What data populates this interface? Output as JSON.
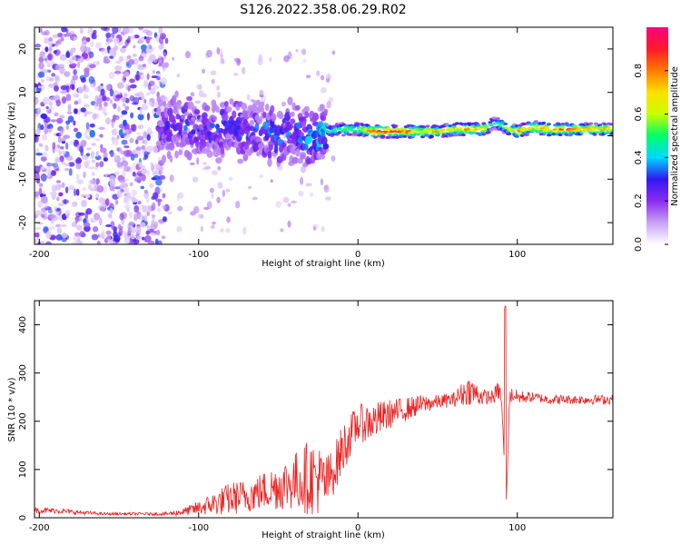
{
  "title": "S126.2022.358.06.29.R02",
  "colors": {
    "snr_line": "#ee2222",
    "axis": "#000000",
    "background": "#ffffff"
  },
  "chart_data": [
    {
      "type": "heatmap",
      "id": "spectrogram",
      "xlabel": "Height of straight line (km)",
      "ylabel": "Frequency (Hz)",
      "xlim": [
        -203,
        160
      ],
      "ylim": [
        -25,
        25
      ],
      "xticks": [
        -200,
        -100,
        0,
        100
      ],
      "yticks": [
        -20,
        -10,
        0,
        10,
        20
      ],
      "grid": false,
      "colorbar": {
        "label": "Normalized spectral amplitude",
        "range": [
          0,
          1
        ],
        "ticks": [
          0.0,
          0.2,
          0.4,
          0.6,
          0.8
        ],
        "palette": [
          "#ffffff",
          "#c7a2f5",
          "#8b2cf0",
          "#3018f0",
          "#00d8ff",
          "#00ff66",
          "#c8ff00",
          "#ffe000",
          "#ff7a00",
          "#ff1a2a",
          "#ff0080"
        ]
      },
      "carrier_track": {
        "description_points_km": [
          -120,
          -110,
          -100,
          -90,
          -80,
          -70,
          -60,
          -50,
          -40,
          -30,
          -20,
          -10,
          0,
          10,
          20,
          30,
          40,
          50,
          60,
          70,
          80,
          85,
          90,
          95,
          100,
          105,
          110,
          120,
          130,
          140,
          150,
          160
        ],
        "frequency_hz": [
          2.0,
          2.5,
          1.5,
          1.0,
          2.0,
          0.5,
          1.0,
          0.0,
          1.0,
          -0.5,
          1.0,
          1.5,
          1.5,
          1.0,
          1.0,
          1.0,
          1.0,
          1.0,
          1.5,
          1.5,
          1.5,
          3.0,
          2.5,
          1.5,
          1.0,
          1.5,
          2.0,
          1.5,
          1.5,
          1.5,
          1.5,
          1.5
        ],
        "amplitude": [
          0.25,
          0.3,
          0.3,
          0.3,
          0.3,
          0.3,
          0.3,
          0.35,
          0.3,
          0.35,
          0.45,
          0.55,
          0.6,
          0.85,
          0.9,
          0.85,
          0.7,
          0.75,
          0.7,
          0.8,
          0.8,
          0.4,
          0.55,
          0.6,
          0.85,
          0.7,
          0.75,
          0.8,
          0.85,
          0.8,
          0.75,
          0.7
        ]
      }
    },
    {
      "type": "line",
      "id": "snr",
      "xlabel": "Height of straight line (km)",
      "ylabel": "SNR (10 * v/v)",
      "xlim": [
        -203,
        160
      ],
      "ylim": [
        0,
        450
      ],
      "xticks": [
        -200,
        -100,
        0,
        100
      ],
      "yticks": [
        0,
        100,
        200,
        300,
        400
      ],
      "grid": false,
      "series": [
        {
          "x": [
            -203,
            -190,
            -180,
            -170,
            -160,
            -150,
            -140,
            -130,
            -120,
            -110,
            -100,
            -90,
            -80,
            -70,
            -60,
            -50,
            -40,
            -30,
            -25,
            -20,
            -15,
            -10,
            -5,
            0,
            10,
            20,
            30,
            40,
            50,
            60,
            65,
            70,
            75,
            80,
            85,
            88,
            90,
            92,
            93,
            94,
            95,
            97,
            100,
            110,
            120,
            130,
            140,
            150,
            160
          ],
          "values": [
            15,
            15,
            12,
            10,
            8,
            8,
            8,
            8,
            8,
            12,
            20,
            30,
            40,
            45,
            55,
            65,
            75,
            85,
            80,
            70,
            100,
            140,
            170,
            195,
            200,
            215,
            225,
            235,
            240,
            245,
            255,
            265,
            255,
            250,
            250,
            265,
            250,
            110,
            30,
            110,
            250,
            255,
            250,
            250,
            245,
            245,
            245,
            245,
            245
          ],
          "noise": [
            6,
            6,
            5,
            4,
            3,
            3,
            3,
            3,
            4,
            8,
            15,
            25,
            35,
            35,
            40,
            50,
            60,
            80,
            75,
            60,
            50,
            55,
            45,
            40,
            40,
            30,
            25,
            20,
            15,
            15,
            25,
            30,
            25,
            15,
            15,
            20,
            20,
            0,
            0,
            0,
            20,
            15,
            15,
            10,
            10,
            10,
            10,
            10,
            10
          ]
        }
      ]
    }
  ]
}
